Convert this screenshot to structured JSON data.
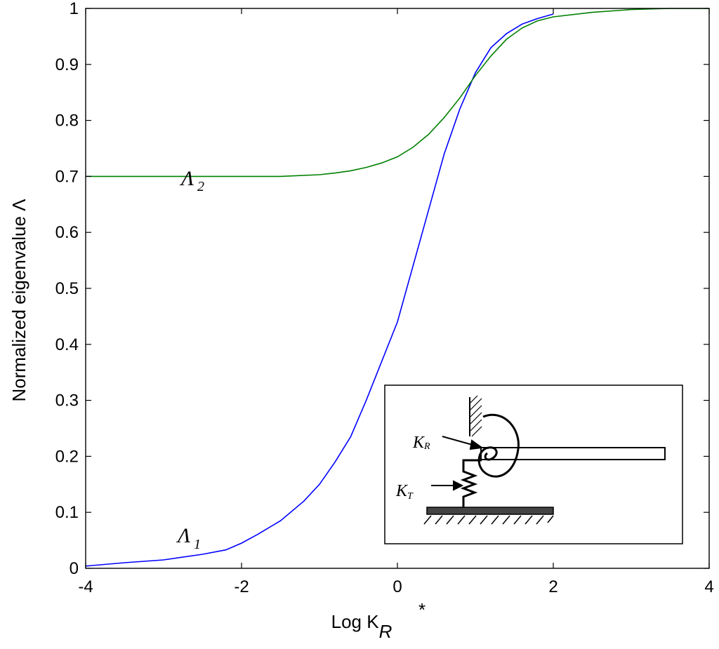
{
  "chart_data": {
    "type": "line",
    "xlabel": "Log K",
    "xlabel_sup": "*",
    "xlabel_sub": "R",
    "ylabel": "Normalized eigenvalue Λ",
    "xlim": [
      -4,
      4
    ],
    "ylim": [
      0,
      1
    ],
    "x_ticks": [
      -4,
      -2,
      0,
      2,
      4
    ],
    "x_tick_labels": [
      "-4",
      "-2",
      "0",
      "2",
      "4"
    ],
    "y_ticks": [
      0,
      0.1,
      0.2,
      0.3,
      0.4,
      0.5,
      0.6,
      0.7,
      0.8,
      0.9,
      1
    ],
    "y_tick_labels": [
      "0",
      "0.1",
      "0.2",
      "0.3",
      "0.4",
      "0.5",
      "0.6",
      "0.7",
      "0.8",
      "0.9",
      "1"
    ],
    "grid": false,
    "series": [
      {
        "name": "Λ1",
        "label_main": "Λ",
        "label_sub": "1",
        "color": "#0000ff",
        "x": [
          -4,
          -3.5,
          -3,
          -2.5,
          -2.2,
          -2,
          -1.8,
          -1.5,
          -1.2,
          -1,
          -0.8,
          -0.6,
          -0.4,
          -0.2,
          0,
          0.2,
          0.4,
          0.6,
          0.8,
          1,
          1.2,
          1.4,
          1.6,
          1.8,
          2
        ],
        "y": [
          0.004,
          0.01,
          0.015,
          0.025,
          0.033,
          0.045,
          0.06,
          0.085,
          0.12,
          0.15,
          0.19,
          0.235,
          0.3,
          0.37,
          0.44,
          0.54,
          0.64,
          0.74,
          0.82,
          0.885,
          0.93,
          0.955,
          0.972,
          0.982,
          0.99
        ]
      },
      {
        "name": "Λ2",
        "label_main": "Λ",
        "label_sub": "2",
        "color": "#008000",
        "x": [
          -4,
          -3,
          -2,
          -1.5,
          -1,
          -0.8,
          -0.6,
          -0.4,
          -0.2,
          0,
          0.2,
          0.4,
          0.6,
          0.8,
          1,
          1.2,
          1.4,
          1.6,
          1.8,
          2,
          2.5,
          3,
          3.5,
          4
        ],
        "y": [
          0.7,
          0.7,
          0.7,
          0.7,
          0.703,
          0.706,
          0.71,
          0.716,
          0.724,
          0.735,
          0.752,
          0.775,
          0.805,
          0.84,
          0.88,
          0.915,
          0.945,
          0.965,
          0.978,
          0.985,
          0.993,
          0.998,
          1.0,
          1.0
        ]
      }
    ],
    "annotations": [
      {
        "text": "Λ",
        "sub": "2",
        "x": -2.8,
        "y": 0.73
      },
      {
        "text": "Λ",
        "sub": "1",
        "x": -2.8,
        "y": 0.045
      }
    ],
    "inset": {
      "kr_main": "K",
      "kr_sub": "R",
      "kt_main": "K",
      "kt_sub": "T"
    }
  }
}
